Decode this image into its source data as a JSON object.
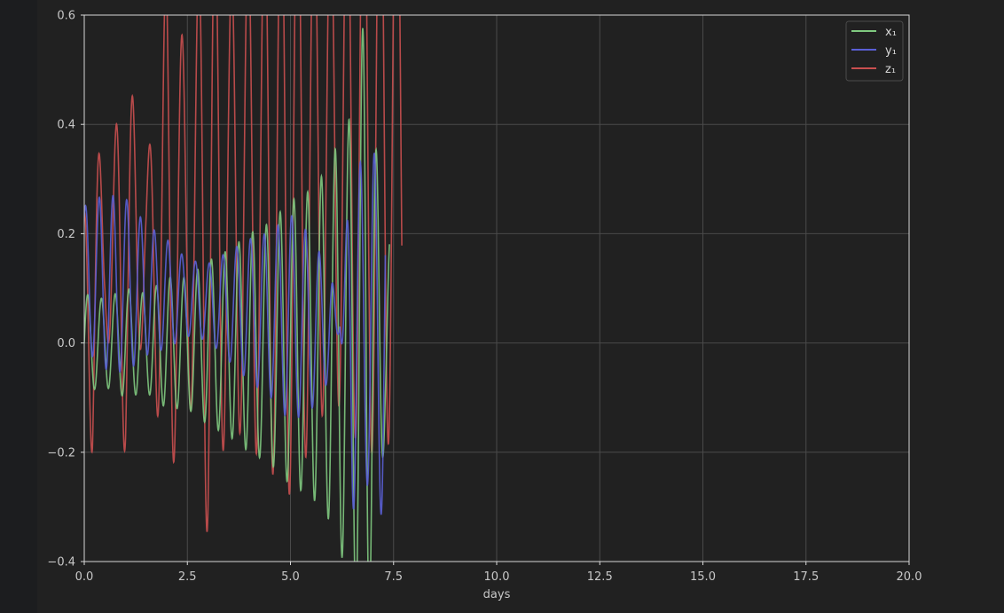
{
  "colors": {
    "figure_bg": "#212121",
    "outer_bg": "#1c1d1f",
    "grid": "#4a4a4a",
    "spine": "#d8d8d8",
    "text": "#c8c8c8"
  },
  "chart_data": {
    "type": "line",
    "title": "",
    "xlabel": "days",
    "ylabel": "",
    "xlim": [
      0,
      20
    ],
    "ylim": [
      -0.4,
      0.6
    ],
    "xticks": [
      0.0,
      2.5,
      5.0,
      7.5,
      10.0,
      12.5,
      15.0,
      17.5,
      20.0
    ],
    "xtick_labels": [
      "0.0",
      "2.5",
      "5.0",
      "7.5",
      "10.0",
      "12.5",
      "15.0",
      "17.5",
      "20.0"
    ],
    "yticks": [
      -0.4,
      -0.2,
      0.0,
      0.2,
      0.4,
      0.6
    ],
    "ytick_labels": [
      "−0.4",
      "−0.2",
      "0.0",
      "0.2",
      "0.4",
      "0.6"
    ],
    "grid": true,
    "legend_position": "top-right",
    "series": [
      {
        "name": "x₁",
        "color": "#7fc97f",
        "description": "oscillation ~3 per day, amplitude growing from ~0.09 to beyond axis range; diverges after ~7.4 days",
        "points": [
          [
            0.0,
            0.09
          ],
          [
            0.5,
            -0.08
          ],
          [
            1.0,
            0.1
          ],
          [
            1.5,
            -0.09
          ],
          [
            2.0,
            0.12
          ],
          [
            2.5,
            -0.12
          ],
          [
            3.0,
            0.15
          ],
          [
            3.5,
            -0.17
          ],
          [
            4.0,
            0.2
          ],
          [
            4.5,
            -0.22
          ],
          [
            5.0,
            0.26
          ],
          [
            5.5,
            -0.28
          ],
          [
            6.0,
            0.33
          ],
          [
            6.2,
            0.39
          ],
          [
            6.4,
            -0.4
          ],
          [
            6.8,
            0.6
          ],
          [
            7.3,
            0.16
          ],
          [
            7.4,
            -0.19
          ]
        ]
      },
      {
        "name": "y₁",
        "color": "#5a5fd6",
        "description": "oscillation centered ~0.1 early, drifting downward with growing amplitude; diverges after ~7.3 days",
        "points": [
          [
            0.0,
            0.13
          ],
          [
            0.5,
            0.16
          ],
          [
            1.0,
            0.16
          ],
          [
            1.5,
            0.12
          ],
          [
            2.0,
            0.1
          ],
          [
            2.5,
            0.07
          ],
          [
            3.0,
            0.07
          ],
          [
            3.5,
            0.1
          ],
          [
            4.0,
            0.13
          ],
          [
            4.5,
            0.15
          ],
          [
            5.0,
            0.19
          ],
          [
            5.5,
            0.16
          ],
          [
            6.0,
            0.09
          ],
          [
            6.2,
            0.0
          ],
          [
            6.5,
            0.34
          ],
          [
            6.8,
            0.28
          ],
          [
            7.3,
            -0.36
          ]
        ]
      },
      {
        "name": "z₁",
        "color": "#c94f4f",
        "description": "large oscillation ~2.5 per day, peaks growing from 0.35 to off-scale by day 3; stops at ~7.7 days",
        "points": [
          [
            0.0,
            -0.13
          ],
          [
            0.2,
            0.35
          ],
          [
            0.5,
            -0.1
          ],
          [
            1.0,
            0.37
          ],
          [
            1.5,
            -0.12
          ],
          [
            2.0,
            0.49
          ],
          [
            2.5,
            -0.3
          ],
          [
            3.0,
            0.6
          ],
          [
            3.5,
            -0.4
          ],
          [
            5.0,
            0.6
          ],
          [
            6.0,
            0.45
          ],
          [
            6.8,
            0.6
          ],
          [
            7.5,
            0.6
          ],
          [
            7.7,
            0.6
          ]
        ]
      }
    ]
  }
}
